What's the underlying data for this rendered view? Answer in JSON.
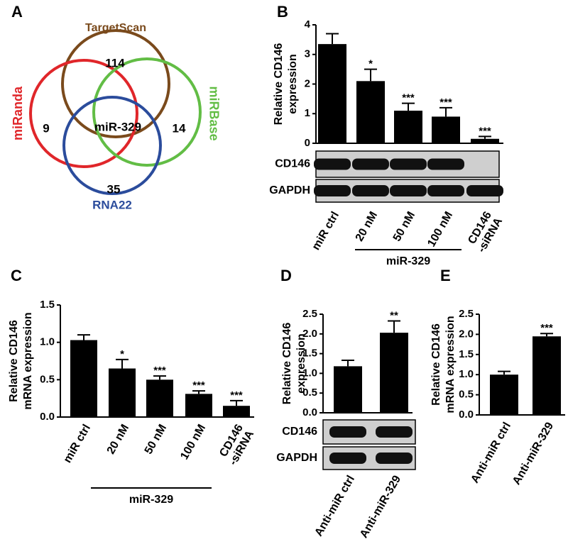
{
  "chart_data": [
    {
      "type": "venn",
      "panel": "A",
      "sets": [
        {
          "name": "TargetScan",
          "color": "#7a4a1c"
        },
        {
          "name": "miRanda",
          "color": "#e0262a"
        },
        {
          "name": "miRBase",
          "color": "#62bd45"
        },
        {
          "name": "RNA22",
          "color": "#2b4c9c"
        }
      ],
      "region_values": [
        114,
        9,
        14,
        35
      ],
      "center_label": "miR-329"
    },
    {
      "type": "bar",
      "panel": "B",
      "ylabel": [
        "Relative CD146",
        "expression"
      ],
      "categories": [
        "miR ctrl",
        "20 nM",
        "50 nM",
        "100 nM",
        "CD146\n-siRNA"
      ],
      "values": [
        3.35,
        2.1,
        1.1,
        0.9,
        0.15
      ],
      "errors": [
        0.35,
        0.4,
        0.25,
        0.3,
        0.08
      ],
      "significance": [
        null,
        "*",
        "***",
        "***",
        "***"
      ],
      "color": "#000000",
      "ylim": [
        0,
        4
      ],
      "yticks": [
        0,
        1,
        2,
        3,
        4
      ],
      "group_label": "miR-329",
      "blot_rows": [
        {
          "label": "CD146",
          "bands": [
            true,
            true,
            true,
            true,
            false
          ]
        },
        {
          "label": "GAPDH",
          "bands": [
            true,
            true,
            true,
            true,
            true
          ]
        }
      ]
    },
    {
      "type": "bar",
      "panel": "C",
      "ylabel": [
        "Relative CD146",
        "mRNA expression"
      ],
      "categories": [
        "miR ctrl",
        "20 nM",
        "50 nM",
        "100 nM",
        "CD146\n-siRNA"
      ],
      "values": [
        1.03,
        0.65,
        0.5,
        0.31,
        0.15
      ],
      "errors": [
        0.07,
        0.12,
        0.05,
        0.04,
        0.07
      ],
      "significance": [
        null,
        "*",
        "***",
        "***",
        "***"
      ],
      "color": "#000000",
      "ylim": [
        0,
        1.5
      ],
      "yticks": [
        {
          "value": 0,
          "label": "0.0"
        },
        0.5,
        {
          "value": 1,
          "label": "1.0"
        },
        1.5
      ],
      "group_label": "miR-329"
    },
    {
      "type": "bar",
      "panel": "D",
      "ylabel": [
        "Relative CD146",
        "expression"
      ],
      "categories": [
        "Anti-miR ctrl",
        "Anti-miR-329"
      ],
      "values": [
        1.18,
        2.03
      ],
      "errors": [
        0.15,
        0.3
      ],
      "significance": [
        null,
        "**"
      ],
      "color": "#000000",
      "ylim": [
        0,
        2.5
      ],
      "yticks": [
        {
          "value": 0,
          "label": "0.0"
        },
        0.5,
        {
          "value": 1,
          "label": "1.0"
        },
        1.5,
        {
          "value": 2,
          "label": "2.0"
        },
        2.5
      ],
      "blot_rows": [
        {
          "label": "CD146",
          "bands": [
            true,
            true
          ]
        },
        {
          "label": "GAPDH",
          "bands": [
            true,
            true
          ]
        }
      ]
    },
    {
      "type": "bar",
      "panel": "E",
      "ylabel": [
        "Relative CD146",
        "mRNA expression"
      ],
      "categories": [
        "Anti-miR ctrl",
        "Anti-miR-329"
      ],
      "values": [
        1.0,
        1.95
      ],
      "errors": [
        0.08,
        0.07
      ],
      "significance": [
        null,
        "***"
      ],
      "color": "#000000",
      "ylim": [
        0,
        2.5
      ],
      "yticks": [
        {
          "value": 0,
          "label": "0.0"
        },
        0.5,
        {
          "value": 1,
          "label": "1.0"
        },
        1.5,
        {
          "value": 2,
          "label": "2.0"
        },
        2.5
      ]
    }
  ]
}
